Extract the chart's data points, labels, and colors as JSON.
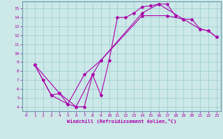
{
  "xlabel": "Windchill (Refroidissement éolien,°C)",
  "bg_color": "#cce8e8",
  "grid_color": "#99cccc",
  "line_color": "#aa00aa",
  "spine_color": "#6699aa",
  "xlim": [
    -0.5,
    23.5
  ],
  "ylim": [
    3.5,
    15.8
  ],
  "xticks": [
    0,
    1,
    2,
    3,
    4,
    5,
    6,
    7,
    8,
    9,
    10,
    11,
    12,
    13,
    14,
    15,
    16,
    17,
    18,
    19,
    20,
    21,
    22,
    23
  ],
  "yticks": [
    4,
    5,
    6,
    7,
    8,
    9,
    10,
    11,
    12,
    13,
    14,
    15
  ],
  "curve1_x": [
    1,
    2,
    3,
    4,
    5,
    6,
    7,
    8,
    9,
    10,
    11,
    12,
    13,
    14,
    15,
    16,
    17,
    18
  ],
  "curve1_y": [
    8.7,
    7.0,
    5.3,
    5.5,
    4.3,
    4.0,
    4.0,
    7.6,
    5.3,
    9.2,
    14.0,
    14.0,
    14.5,
    15.2,
    15.3,
    15.5,
    15.5,
    14.2
  ],
  "curve2_x": [
    1,
    3,
    5,
    7,
    9,
    14,
    17,
    19,
    20,
    21,
    22,
    23
  ],
  "curve2_y": [
    8.7,
    5.3,
    4.3,
    7.6,
    9.2,
    14.2,
    14.2,
    13.8,
    13.8,
    12.7,
    12.5,
    11.8
  ],
  "curve3_x": [
    1,
    4,
    6,
    8,
    9,
    14,
    16,
    19,
    21,
    22,
    23
  ],
  "curve3_y": [
    8.7,
    5.5,
    4.0,
    7.6,
    9.2,
    14.5,
    15.5,
    13.8,
    12.7,
    12.5,
    11.8
  ]
}
